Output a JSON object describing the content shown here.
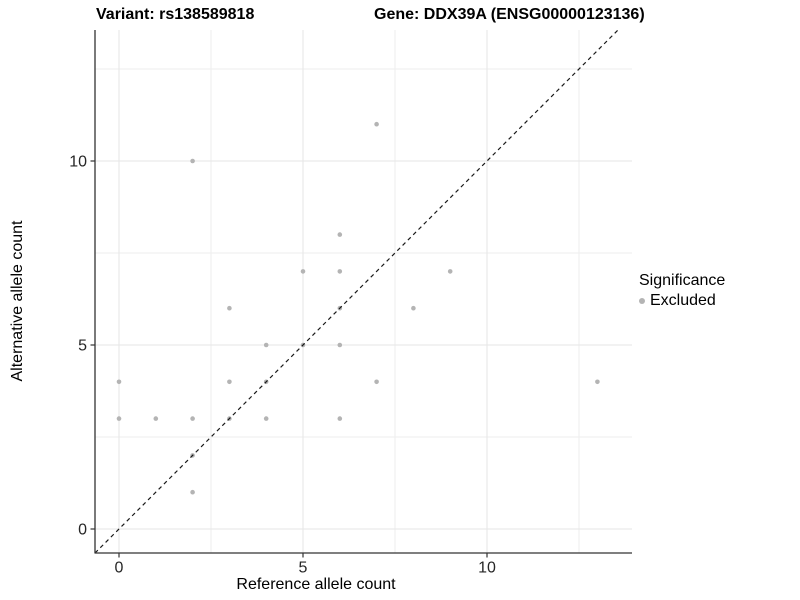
{
  "header": {
    "variant_title": "Variant: rs138589818",
    "gene_title": "Gene: DDX39A (ENSG00000123136)"
  },
  "chart_data": {
    "type": "scatter",
    "title": "Variant: rs138589818 — Gene: DDX39A (ENSG00000123136)",
    "xlabel": "Reference allele count",
    "ylabel": "Alternative allele count",
    "xlim": [
      -0.66,
      13.9
    ],
    "ylim": [
      -0.66,
      13.6
    ],
    "x_major_ticks": [
      0,
      5,
      10
    ],
    "y_major_ticks": [
      0,
      5,
      10
    ],
    "x_minor_ticks": [
      2.5,
      7.5,
      12.5
    ],
    "y_minor_ticks": [
      2.5,
      7.5,
      12.5
    ],
    "grid": true,
    "legend_position": "right",
    "identity_line": {
      "slope": 1,
      "intercept": 0,
      "style": "dashed",
      "color": "#1a1a1a"
    },
    "series": [
      {
        "name": "Excluded",
        "color": "#b4b4b4",
        "points": [
          [
            0,
            3
          ],
          [
            0,
            4
          ],
          [
            1,
            3
          ],
          [
            2,
            1
          ],
          [
            2,
            2
          ],
          [
            2,
            3
          ],
          [
            2,
            10
          ],
          [
            3,
            3
          ],
          [
            3,
            4
          ],
          [
            3,
            6
          ],
          [
            4,
            3
          ],
          [
            4,
            4
          ],
          [
            4,
            5
          ],
          [
            5,
            5
          ],
          [
            5,
            7
          ],
          [
            6,
            3
          ],
          [
            6,
            5
          ],
          [
            6,
            6
          ],
          [
            6,
            7
          ],
          [
            6,
            8
          ],
          [
            7,
            4
          ],
          [
            7,
            11
          ],
          [
            8,
            6
          ],
          [
            9,
            7
          ],
          [
            13,
            4
          ]
        ]
      }
    ],
    "legend": {
      "title": "Significance",
      "items": [
        {
          "label": "Excluded",
          "color": "#b4b4b4"
        }
      ]
    },
    "colors": {
      "point": "#b4b4b4",
      "grid_major": "#e5e5e5",
      "grid_minor": "#ededed",
      "axis_line": "#333333",
      "tick_mark": "#333333",
      "tick_label": "#262626",
      "background": "#ffffff"
    }
  }
}
